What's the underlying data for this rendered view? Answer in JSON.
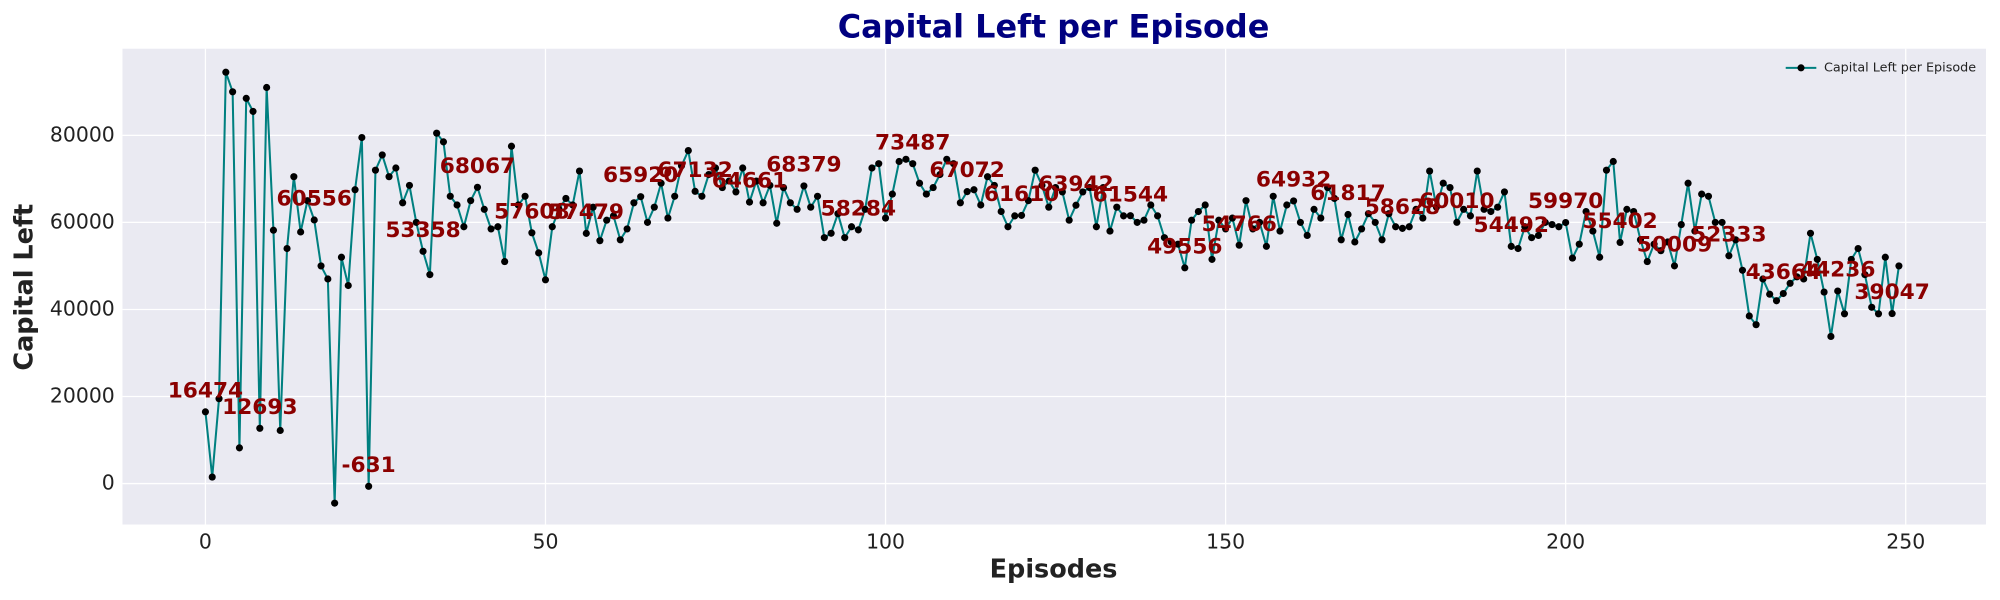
{
  "chart_data": {
    "type": "line",
    "title": "Capital Left per Episode",
    "xlabel": "Episodes",
    "ylabel": "Capital Left",
    "x": [
      0,
      1,
      2,
      3,
      4,
      5,
      6,
      7,
      8,
      9,
      10,
      11,
      12,
      13,
      14,
      15,
      16,
      17,
      18,
      19,
      20,
      21,
      22,
      23,
      24,
      25,
      26,
      27,
      28,
      29,
      30,
      31,
      32,
      33,
      34,
      35,
      36,
      37,
      38,
      39,
      40,
      41,
      42,
      43,
      44,
      45,
      46,
      47,
      48,
      49,
      50,
      51,
      52,
      53,
      54,
      55,
      56,
      57,
      58,
      59,
      60,
      61,
      62,
      63,
      64,
      65,
      66,
      67,
      68,
      69,
      70,
      71,
      72,
      73,
      74,
      75,
      76,
      77,
      78,
      79,
      80,
      81,
      82,
      83,
      84,
      85,
      86,
      87,
      88,
      89,
      90,
      91,
      92,
      93,
      94,
      95,
      96,
      97,
      98,
      99,
      100,
      101,
      102,
      103,
      104,
      105,
      106,
      107,
      108,
      109,
      110,
      111,
      112,
      113,
      114,
      115,
      116,
      117,
      118,
      119,
      120,
      121,
      122,
      123,
      124,
      125,
      126,
      127,
      128,
      129,
      130,
      131,
      132,
      133,
      134,
      135,
      136,
      137,
      138,
      139,
      140,
      141,
      142,
      143,
      144,
      145,
      146,
      147,
      148,
      149,
      150,
      151,
      152,
      153,
      154,
      155,
      156,
      157,
      158,
      159,
      160,
      161,
      162,
      163,
      164,
      165,
      166,
      167,
      168,
      169,
      170,
      171,
      172,
      173,
      174,
      175,
      176,
      177,
      178,
      179,
      180,
      181,
      182,
      183,
      184,
      185,
      186,
      187,
      188,
      189,
      190,
      191,
      192,
      193,
      194,
      195,
      196,
      197,
      198,
      199,
      200,
      201,
      202,
      203,
      204,
      205,
      206,
      207,
      208,
      209,
      210,
      211,
      212,
      213,
      214,
      215,
      216,
      217,
      218,
      219,
      220,
      221,
      222,
      223,
      224,
      225,
      226,
      227,
      228,
      229,
      230,
      231,
      232,
      233,
      234,
      235,
      236,
      237,
      238,
      239,
      240,
      241,
      242,
      243,
      244,
      245,
      246,
      247,
      248,
      249
    ],
    "series": [
      {
        "name": "Capital Left per Episode",
        "color": "#008080",
        "marker_color": "#000000",
        "values": [
          16474,
          1500,
          19500,
          94500,
          90000,
          8200,
          88500,
          85500,
          12693,
          91000,
          58200,
          12200,
          54000,
          70500,
          57800,
          65000,
          60556,
          50000,
          47000,
          -4500,
          52000,
          45500,
          67500,
          79500,
          -631,
          72000,
          75500,
          70500,
          72500,
          64500,
          68500,
          60000,
          53358,
          48000,
          80500,
          78500,
          66000,
          64000,
          59000,
          65000,
          68067,
          63000,
          58500,
          59000,
          51000,
          77500,
          64000,
          66000,
          57608,
          53000,
          46800,
          59000,
          63000,
          65500,
          64000,
          71800,
          57479,
          63500,
          55800,
          60500,
          61500,
          56000,
          58500,
          64500,
          65920,
          60000,
          63500,
          69000,
          61000,
          66000,
          73000,
          76500,
          67132,
          66000,
          71000,
          72500,
          68000,
          69500,
          67000,
          72500,
          64661,
          69500,
          64500,
          68500,
          59800,
          68000,
          64500,
          63000,
          68379,
          63500,
          66000,
          56500,
          57500,
          62000,
          56500,
          59000,
          58284,
          63000,
          72500,
          73500,
          61000,
          66500,
          74000,
          74500,
          73487,
          69000,
          66500,
          68000,
          71000,
          74500,
          73500,
          64500,
          67072,
          67500,
          64000,
          70500,
          68500,
          62500,
          59000,
          61500,
          61610,
          65000,
          72000,
          68500,
          63500,
          68000,
          67000,
          60500,
          63942,
          67000,
          68000,
          59000,
          68000,
          58000,
          63500,
          61500,
          61544,
          60000,
          60500,
          64000,
          61500,
          56500,
          55500,
          55000,
          49556,
          60500,
          62500,
          64000,
          51500,
          60500,
          58500,
          61000,
          54766,
          65000,
          58500,
          60000,
          54500,
          66000,
          58000,
          64000,
          64932,
          60000,
          57000,
          63000,
          61000,
          68000,
          65500,
          56000,
          61817,
          55500,
          58500,
          62000,
          60000,
          56000,
          62000,
          59000,
          58628,
          59000,
          63000,
          61000,
          71800,
          63500,
          69000,
          68000,
          60010,
          63000,
          61500,
          71800,
          63000,
          62500,
          63500,
          67000,
          54492,
          54000,
          59000,
          56500,
          57000,
          60000,
          59500,
          59000,
          59970,
          51800,
          55000,
          62500,
          58000,
          52000,
          72000,
          74000,
          55402,
          63000,
          62500,
          56000,
          51000,
          55000,
          53500,
          55500,
          50009,
          59500,
          69000,
          58000,
          66500,
          66000,
          60000,
          60000,
          52333,
          56000,
          49000,
          38500,
          36500,
          47000,
          43500,
          42000,
          43664,
          46000,
          47500,
          47000,
          57500,
          51500,
          44000,
          33800,
          44236,
          39000,
          51500,
          54000,
          48000,
          40500,
          39000,
          52000,
          39047,
          50000
        ]
      }
    ],
    "label_every": 8,
    "xlim": [
      -12.2,
      261.8
    ],
    "xticks": [
      0,
      50,
      100,
      150,
      200,
      250
    ],
    "ylim": [
      -9400,
      99900
    ],
    "yticks": [
      0,
      20000,
      40000,
      60000,
      80000
    ],
    "grid": true,
    "legend": "upper right"
  }
}
